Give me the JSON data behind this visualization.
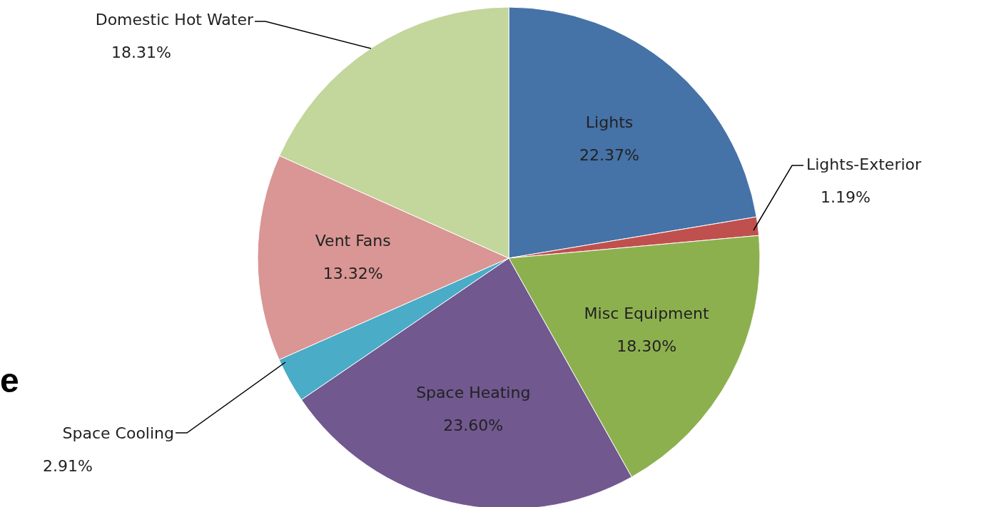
{
  "chart_data": {
    "type": "pie",
    "categories": [
      "Lights",
      "Lights-Exterior",
      "Misc Equipment",
      "Space Heating",
      "Space Cooling",
      "Vent Fans",
      "Domestic Hot Water"
    ],
    "values": [
      22.37,
      1.19,
      18.3,
      23.6,
      2.91,
      13.32,
      18.31
    ],
    "value_labels": [
      "22.37%",
      "1.19%",
      "18.30%",
      "23.60%",
      "2.91%",
      "13.32%",
      "18.31%"
    ],
    "colors": [
      "#4572a7",
      "#c0504d",
      "#8db04f",
      "#71588f",
      "#4aacc6",
      "#d99694",
      "#c3d69b"
    ],
    "annotations": [
      "e"
    ]
  }
}
